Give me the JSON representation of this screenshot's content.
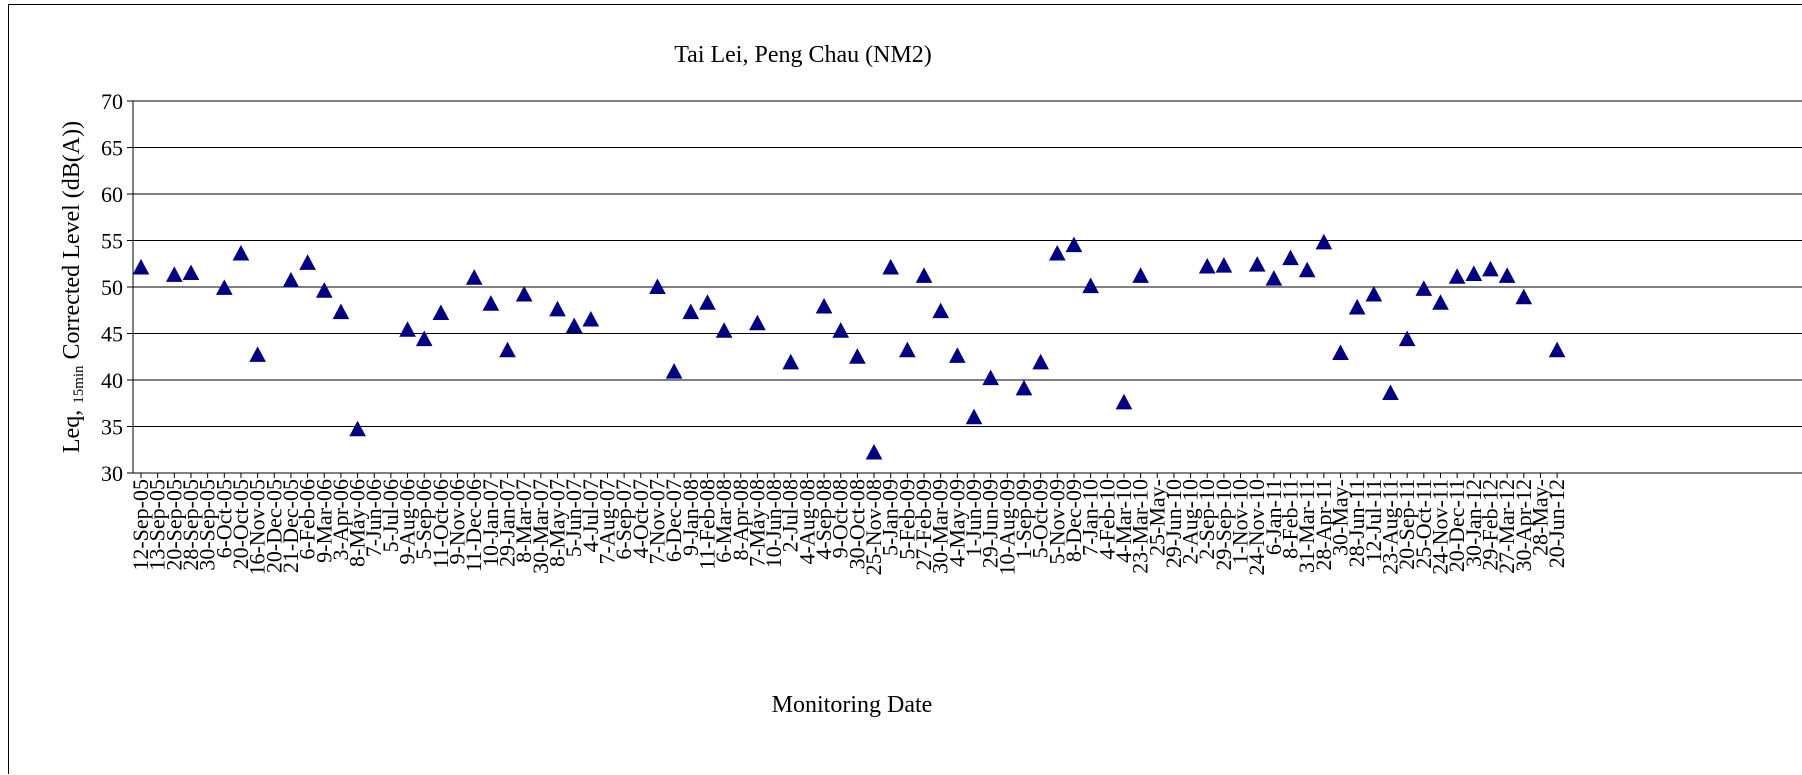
{
  "chart_data": {
    "type": "scatter",
    "title": "Tai Lei, Peng Chau (NM2)",
    "ylabel_parts": [
      "Leq, ",
      "15min",
      " Corrected Level (dB(A))"
    ],
    "xlabel": "Monitoring Date",
    "ylim": [
      30,
      70
    ],
    "yticks": [
      30,
      35,
      40,
      45,
      50,
      55,
      60,
      65,
      70
    ],
    "grid": true,
    "marker": "triangle",
    "marker_color": "#000080",
    "series": [
      {
        "points": [
          [
            "12-Sep-05",
            52.1
          ],
          [
            "13-Sep-05",
            null
          ],
          [
            "20-Sep-05",
            51.3
          ],
          [
            "28-Sep-05",
            51.5
          ],
          [
            "30-Sep-05",
            null
          ],
          [
            "6-Oct-05",
            49.9
          ],
          [
            "20-Oct-05",
            53.6
          ],
          [
            "16-Nov-05",
            42.7
          ],
          [
            "20-Dec-05",
            null
          ],
          [
            "21-Dec-05",
            50.7
          ],
          [
            "6-Feb-06",
            52.6
          ],
          [
            "9-Mar-06",
            49.6
          ],
          [
            "3-Apr-06",
            47.3
          ],
          [
            "8-May-06",
            34.7
          ],
          [
            "7-Jun-06",
            null
          ],
          [
            "5-Jul-06",
            null
          ],
          [
            "9-Aug-06",
            45.4
          ],
          [
            "5-Sep-06",
            44.4
          ],
          [
            "11-Oct-06",
            47.2
          ],
          [
            "9-Nov-06",
            null
          ],
          [
            "11-Dec-06",
            51.0
          ],
          [
            "10-Jan-07",
            48.2
          ],
          [
            "29-Jan-07",
            43.2
          ],
          [
            "8-Mar-07",
            49.2
          ],
          [
            "30-Mar-07",
            null
          ],
          [
            "8-May-07",
            47.6
          ],
          [
            "5-Jun-07",
            45.8
          ],
          [
            "4-Jul-07",
            46.5
          ],
          [
            "7-Aug-07",
            null
          ],
          [
            "6-Sep-07",
            null
          ],
          [
            "4-Oct-07",
            null
          ],
          [
            "7-Nov-07",
            50.0
          ],
          [
            "6-Dec-07",
            40.9
          ],
          [
            "9-Jan-08",
            47.3
          ],
          [
            "11-Feb-08",
            48.3
          ],
          [
            "6-Mar-08",
            45.3
          ],
          [
            "8-Apr-08",
            null
          ],
          [
            "7-May-08",
            46.1
          ],
          [
            "10-Jun-08",
            null
          ],
          [
            "2-Jul-08",
            41.9
          ],
          [
            "4-Aug-08",
            null
          ],
          [
            "4-Sep-08",
            47.9
          ],
          [
            "9-Oct-08",
            45.3
          ],
          [
            "30-Oct-08",
            42.5
          ],
          [
            "25-Nov-08",
            32.2
          ],
          [
            "5-Jan-09",
            52.1
          ],
          [
            "5-Feb-09",
            43.2
          ],
          [
            "27-Feb-09",
            51.2
          ],
          [
            "30-Mar-09",
            47.4
          ],
          [
            "4-May-09",
            42.6
          ],
          [
            "1-Jun-09",
            36.0
          ],
          [
            "29-Jun-09",
            40.2
          ],
          [
            "10-Aug-09",
            null
          ],
          [
            "1-Sep-09",
            39.1
          ],
          [
            "5-Oct-09",
            41.9
          ],
          [
            "5-Nov-09",
            53.6
          ],
          [
            "8-Dec-09",
            54.5
          ],
          [
            "7-Jan-10",
            50.1
          ],
          [
            "4-Feb-10",
            null
          ],
          [
            "4-Mar-10",
            37.6
          ],
          [
            "23-Mar-10",
            51.2
          ],
          [
            "25-May-",
            null
          ],
          [
            "29-Jun-10",
            null
          ],
          [
            "2-Aug-10",
            null
          ],
          [
            "2-Sep-10",
            52.2
          ],
          [
            "29-Sep-10",
            52.3
          ],
          [
            "1-Nov-10",
            null
          ],
          [
            "24-Nov-10",
            52.4
          ],
          [
            "6-Jan-11",
            50.9
          ],
          [
            "8-Feb-11",
            53.1
          ],
          [
            "31-Mar-11",
            51.8
          ],
          [
            "28-Apr-11",
            54.8
          ],
          [
            "30-May-",
            42.9
          ],
          [
            "28-Jun-11",
            47.8
          ],
          [
            "12-Jul-11",
            49.2
          ],
          [
            "23-Aug-11",
            38.6
          ],
          [
            "20-Sep-11",
            44.4
          ],
          [
            "25-Oct-11",
            49.8
          ],
          [
            "24-Nov-11",
            48.3
          ],
          [
            "20-Dec-11",
            51.1
          ],
          [
            "30-Jan-12",
            51.4
          ],
          [
            "29-Feb-12",
            51.9
          ],
          [
            "27-Mar-12",
            51.2
          ],
          [
            "30-Apr-12",
            48.9
          ],
          [
            "28-May-",
            null
          ],
          [
            "20-Jun-12",
            43.2
          ]
        ]
      }
    ]
  }
}
